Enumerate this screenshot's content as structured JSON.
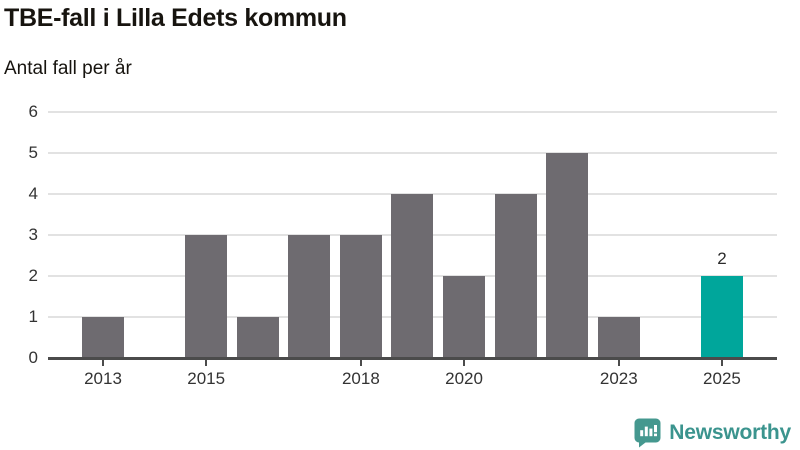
{
  "page": {
    "title": "TBE-fall i Lilla Edets kommun",
    "subtitle": "Antal fall per år"
  },
  "chart_data": {
    "type": "bar",
    "title": "TBE-fall i Lilla Edets kommun",
    "subtitle": "Antal fall per år",
    "categories": [
      2013,
      2014,
      2015,
      2016,
      2017,
      2018,
      2019,
      2020,
      2021,
      2022,
      2023,
      2024,
      2025
    ],
    "values": [
      1,
      0,
      3,
      1,
      3,
      3,
      4,
      2,
      4,
      5,
      1,
      0,
      2
    ],
    "highlight_index": 12,
    "bar_label": {
      "index": 12,
      "text": "2"
    },
    "ylim": [
      0,
      6
    ],
    "yticks": [
      0,
      1,
      2,
      3,
      4,
      5,
      6
    ],
    "xtick_years": [
      2013,
      2015,
      2018,
      2020,
      2023,
      2025
    ],
    "xtick_labels": [
      "2013",
      "2015",
      "2018",
      "2020",
      "2023",
      "2025"
    ],
    "grid": true,
    "legend": "none",
    "colors": {
      "bar": "#6e6b70",
      "highlight": "#00a69b",
      "gridline": "#e2e2e2",
      "axis": "#4b4b4b",
      "tick_label": "#333333"
    }
  },
  "branding": {
    "name": "Newsworthy",
    "logo_icon": "newsworthy-chart-bubble-icon",
    "color": "#3b948e",
    "icon_color": "#45988f"
  }
}
